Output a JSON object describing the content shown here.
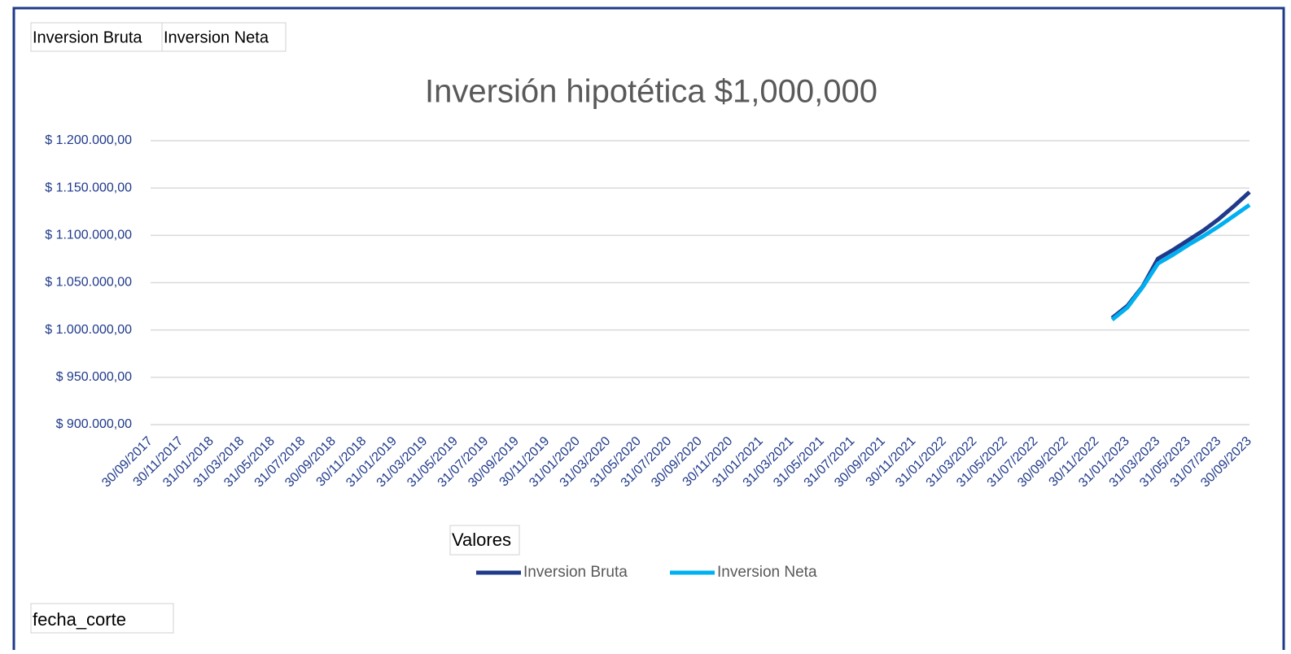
{
  "fields": {
    "filters": [
      "Inversion Bruta",
      "Inversion Neta"
    ],
    "values": "Valores",
    "axis": "fecha_corte"
  },
  "chart_data": {
    "type": "line",
    "title": "Inversión hipotética $1,000,000",
    "categories": [
      "30/09/2017",
      null,
      "30/11/2017",
      null,
      "31/01/2018",
      null,
      "31/03/2018",
      null,
      "31/05/2018",
      null,
      "31/07/2018",
      null,
      "30/09/2018",
      null,
      "30/11/2018",
      null,
      "31/01/2019",
      null,
      "31/03/2019",
      null,
      "31/05/2019",
      null,
      "31/07/2019",
      null,
      "30/09/2019",
      null,
      "30/11/2019",
      null,
      "31/01/2020",
      null,
      "31/03/2020",
      null,
      "31/05/2020",
      null,
      "31/07/2020",
      null,
      "30/09/2020",
      null,
      "30/11/2020",
      null,
      "31/01/2021",
      null,
      "31/03/2021",
      null,
      "31/05/2021",
      null,
      "31/07/2021",
      null,
      "30/09/2021",
      null,
      "30/11/2021",
      null,
      "31/01/2022",
      null,
      "31/03/2022",
      null,
      "31/05/2022",
      null,
      "31/07/2022",
      null,
      "30/09/2022",
      null,
      "30/11/2022",
      null,
      "31/01/2023",
      null,
      "31/03/2023",
      null,
      "31/05/2023",
      null,
      "31/07/2023",
      null,
      "30/09/2023"
    ],
    "series": [
      {
        "name": "Inversion Bruta",
        "color": "#1f3a8a",
        "values": [
          null,
          null,
          null,
          null,
          null,
          null,
          null,
          null,
          null,
          null,
          null,
          null,
          null,
          null,
          null,
          null,
          null,
          null,
          null,
          null,
          null,
          null,
          null,
          null,
          null,
          null,
          null,
          null,
          null,
          null,
          null,
          null,
          null,
          null,
          null,
          null,
          null,
          null,
          null,
          null,
          null,
          null,
          null,
          null,
          null,
          null,
          null,
          null,
          null,
          null,
          null,
          null,
          null,
          null,
          null,
          null,
          null,
          null,
          null,
          null,
          null,
          null,
          null,
          1012600,
          1025500,
          1046000,
          1075300,
          1084700,
          1095000,
          1105300,
          1117400,
          1131100,
          1145800
        ]
      },
      {
        "name": "Inversion Neta",
        "color": "#00b0f0",
        "values": [
          null,
          null,
          null,
          null,
          null,
          null,
          null,
          null,
          null,
          null,
          null,
          null,
          null,
          null,
          null,
          null,
          null,
          null,
          null,
          null,
          null,
          null,
          null,
          null,
          null,
          null,
          null,
          null,
          null,
          null,
          null,
          null,
          null,
          null,
          null,
          null,
          null,
          null,
          null,
          null,
          null,
          null,
          null,
          null,
          null,
          null,
          null,
          null,
          null,
          null,
          null,
          null,
          null,
          null,
          null,
          null,
          null,
          null,
          null,
          null,
          null,
          null,
          null,
          1010900,
          1023800,
          1045300,
          1070200,
          1079600,
          1090000,
          1099400,
          1109700,
          1120900,
          1132100
        ]
      }
    ],
    "ylim": [
      900000,
      1200000
    ],
    "yticks": [
      {
        "value": 900000,
        "label": "$ 900.000,00"
      },
      {
        "value": 950000,
        "label": "$ 950.000,00"
      },
      {
        "value": 1000000,
        "label": "$ 1.000.000,00"
      },
      {
        "value": 1050000,
        "label": "$ 1.050.000,00"
      },
      {
        "value": 1100000,
        "label": "$ 1.100.000,00"
      },
      {
        "value": 1150000,
        "label": "$ 1.150.000,00"
      },
      {
        "value": 1200000,
        "label": "$ 1.200.000,00"
      }
    ],
    "grid": true,
    "legend": "bottom"
  }
}
